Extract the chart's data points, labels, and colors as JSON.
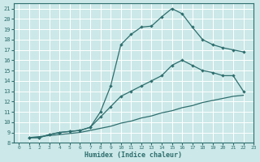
{
  "xlabel": "Humidex (Indice chaleur)",
  "bg_color": "#cce8e8",
  "grid_color": "#ffffff",
  "line_color": "#2e6e6e",
  "xlim": [
    -0.5,
    23
  ],
  "ylim": [
    8,
    21.5
  ],
  "xticks": [
    0,
    1,
    2,
    3,
    4,
    5,
    6,
    7,
    8,
    9,
    10,
    11,
    12,
    13,
    14,
    15,
    16,
    17,
    18,
    19,
    20,
    21,
    22,
    23
  ],
  "yticks": [
    8,
    9,
    10,
    11,
    12,
    13,
    14,
    15,
    16,
    17,
    18,
    19,
    20,
    21
  ],
  "curve1_x": [
    1,
    2,
    3,
    4,
    5,
    6,
    7,
    8,
    9,
    10,
    11,
    12,
    13,
    14,
    15,
    16,
    17,
    18,
    19,
    20,
    21,
    22
  ],
  "curve1_y": [
    8.5,
    8.5,
    8.8,
    9.0,
    9.1,
    9.2,
    9.5,
    11.0,
    13.5,
    17.5,
    18.5,
    19.2,
    19.3,
    20.2,
    21.0,
    20.5,
    19.2,
    18.0,
    17.5,
    17.2,
    17.0,
    16.8
  ],
  "curve2_x": [
    1,
    2,
    3,
    4,
    5,
    6,
    7,
    8,
    9,
    10,
    11,
    12,
    13,
    14,
    15,
    16,
    17,
    18,
    19,
    20,
    21,
    22
  ],
  "curve2_y": [
    8.5,
    8.5,
    8.8,
    9.0,
    9.1,
    9.2,
    9.5,
    10.5,
    11.5,
    12.5,
    13.0,
    13.5,
    14.0,
    14.5,
    15.5,
    16.0,
    15.5,
    15.0,
    14.8,
    14.5,
    14.5,
    13.0
  ],
  "curve3_x": [
    1,
    2,
    3,
    4,
    5,
    6,
    7,
    8,
    9,
    10,
    11,
    12,
    13,
    14,
    15,
    16,
    17,
    18,
    19,
    20,
    21,
    22
  ],
  "curve3_y": [
    8.5,
    8.6,
    8.7,
    8.8,
    8.9,
    9.0,
    9.2,
    9.4,
    9.6,
    9.9,
    10.1,
    10.4,
    10.6,
    10.9,
    11.1,
    11.4,
    11.6,
    11.9,
    12.1,
    12.3,
    12.5,
    12.6
  ]
}
